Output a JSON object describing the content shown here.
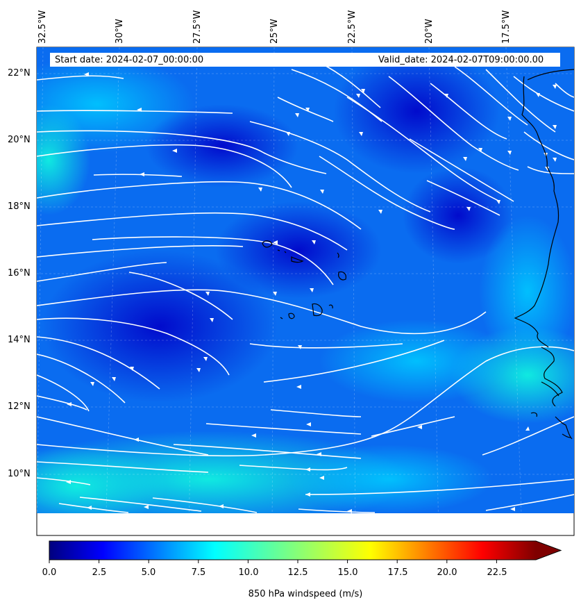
{
  "header": {
    "start_date": "Start date: 2024-02-07_00:00:00",
    "valid_date": "Valid_date: 2024-02-07T09:00:00.00"
  },
  "map": {
    "lon_labels": [
      "32.5°W",
      "30°W",
      "27.5°W",
      "25°W",
      "22.5°W",
      "20°W",
      "17.5°W"
    ],
    "lat_labels": [
      "22°N",
      "20°N",
      "18°N",
      "16°N",
      "14°N",
      "12°N",
      "10°N"
    ],
    "field": "850 hPa windspeed",
    "field_colormap": "jet",
    "streamline_color": "#ffffff",
    "coastline_color": "#000000"
  },
  "colorbar": {
    "ticks": [
      "0.0",
      "2.5",
      "5.0",
      "7.5",
      "10.0",
      "12.5",
      "15.0",
      "17.5",
      "20.0",
      "22.5"
    ],
    "label": "850 hPa windspeed (m/s)",
    "extend": "max"
  }
}
